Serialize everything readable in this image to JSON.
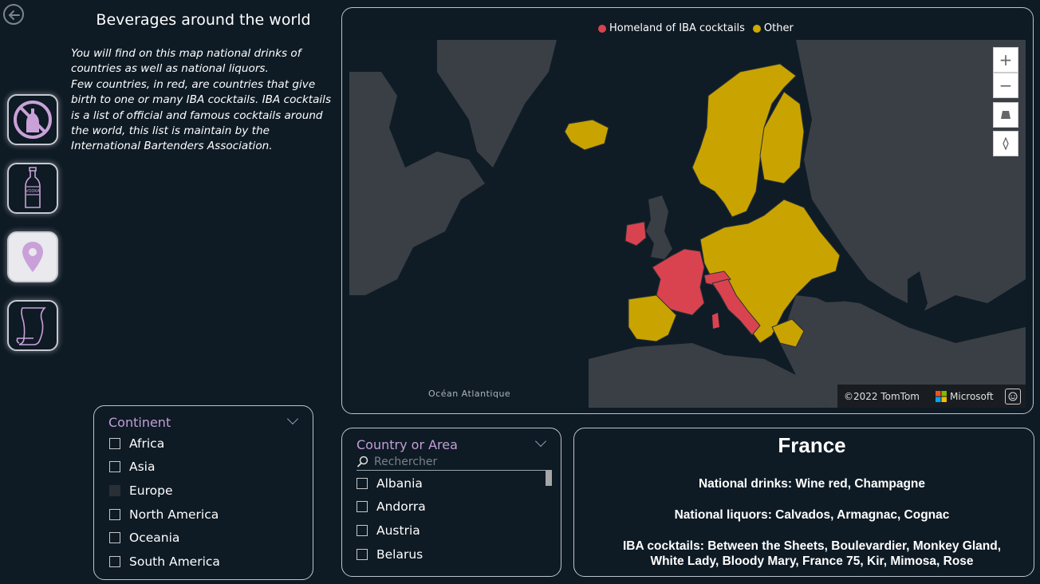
{
  "page": {
    "title": "Beverages around the world",
    "description": [
      "You will find on this map national drinks of countries as well as national liquors.",
      "Few countries, in red, are countries that give birth to one or many IBA cocktails. IBA cocktails is a list of official and famous cocktails around the world, this list is maintain by the International Bartenders Association."
    ]
  },
  "nav": {
    "icons": [
      "no-drinks-icon",
      "vodka-bottle-icon",
      "map-pin-icon",
      "scroll-icon"
    ],
    "active": "map-pin-icon"
  },
  "map": {
    "legend": [
      {
        "label": "Homeland of IBA cocktails",
        "color": "#d9434f"
      },
      {
        "label": "Other",
        "color": "#d0a800"
      }
    ],
    "ocean_label": "Océan Atlantique",
    "attribution": "©2022 TomTom",
    "brand": "Microsoft",
    "controls": [
      "+",
      "−"
    ]
  },
  "continent_slicer": {
    "title": "Continent",
    "options": [
      "Africa",
      "Asia",
      "Europe",
      "North America",
      "Oceania",
      "South America"
    ],
    "selected": "Europe"
  },
  "country_slicer": {
    "title": "Country or Area",
    "search_placeholder": "Rechercher",
    "options": [
      "Albania",
      "Andorra",
      "Austria",
      "Belarus"
    ]
  },
  "detail": {
    "country": "France",
    "national_drinks": "National drinks: Wine red, Champagne",
    "national_liquors": "National liquors: Calvados, Armagnac, Cognac",
    "iba_line1": "IBA cocktails: Between the Sheets, Boulevardier, Monkey Gland,",
    "iba_line2": "White Lady, Bloody Mary, France 75, Kir, Mimosa, Rose"
  }
}
